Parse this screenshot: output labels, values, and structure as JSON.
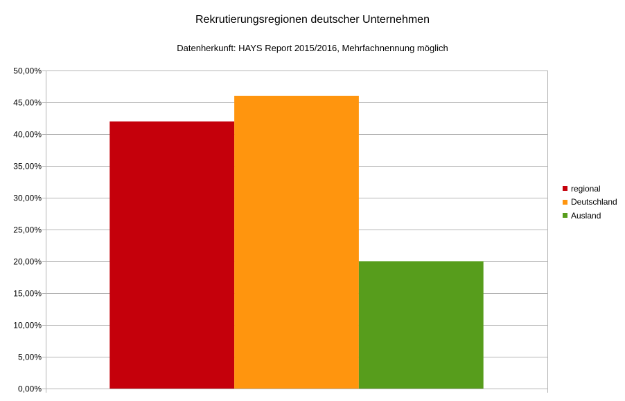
{
  "chart_data": {
    "type": "bar",
    "title": "Rekrutierungsregionen deutscher Unternehmen",
    "subtitle": "Datenherkunft: HAYS Report 2015/2016, Mehrfachnennung möglich",
    "xlabel": "",
    "ylabel": "",
    "ylim": [
      0,
      0.5
    ],
    "y_tick_step": 0.05,
    "y_tick_labels": [
      "0,00%",
      "5,00%",
      "10,00%",
      "15,00%",
      "20,00%",
      "25,00%",
      "30,00%",
      "35,00%",
      "40,00%",
      "45,00%",
      "50,00%"
    ],
    "grid": true,
    "legend_position": "right",
    "series": [
      {
        "name": "regional",
        "value": 0.42,
        "color": "#c5000b"
      },
      {
        "name": "Deutschland",
        "value": 0.46,
        "color": "#ff950e"
      },
      {
        "name": "Ausland",
        "value": 0.2,
        "color": "#579d1c"
      }
    ]
  }
}
